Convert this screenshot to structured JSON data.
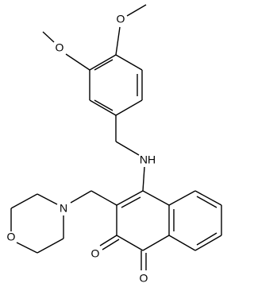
{
  "atoms": [
    {
      "label": "O"
    },
    {
      "label": "O"
    },
    {
      "label": "NH"
    },
    {
      "label": "N"
    },
    {
      "label": "O"
    },
    {
      "label": "O"
    },
    {
      "label": "O"
    }
  ]
}
